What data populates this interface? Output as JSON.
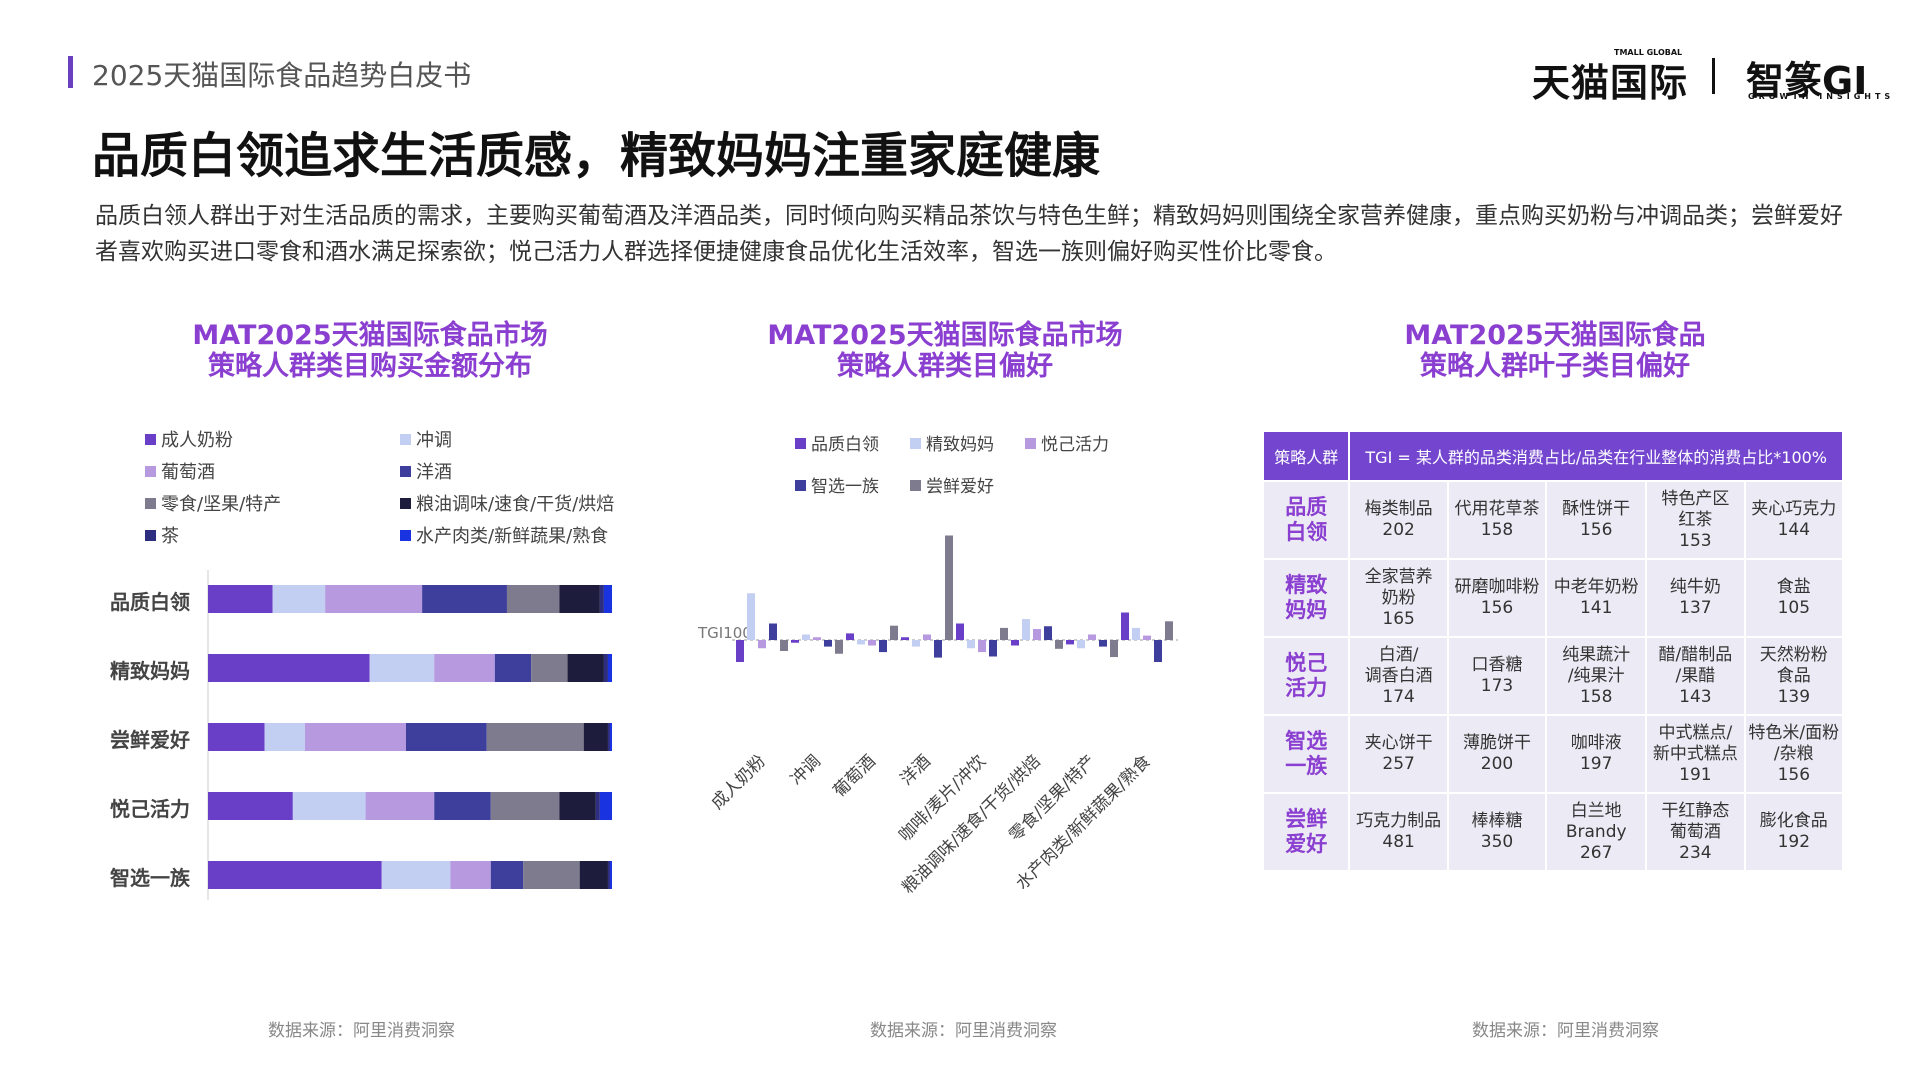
{
  "header": {
    "report_title": "2025天猫国际食品趋势白皮书",
    "brand_tmall": "天猫国际",
    "brand_tmall_small": "TMALL GLOBAL",
    "brand_gi": "智篆GI",
    "brand_gi_small": "GROWTH INSIGHTS"
  },
  "headline": "品质白领追求生活质感，精致妈妈注重家庭健康",
  "intro": "品质白领人群出于对生活品质的需求，主要购买葡萄酒及洋酒品类，同时倾向购买精品茶饮与特色生鲜；精致妈妈则围绕全家营养健康，重点购买奶粉与冲调品类；尝鲜爱好者喜欢购买进口零食和酒水满足探索欲；悦己活力人群选择便捷健康食品优化生活效率，智选一族则偏好购买性价比零食。",
  "colors": {
    "成人奶粉": "#6a3fc8",
    "冲调": "#c3cef3",
    "葡萄酒": "#b699df",
    "洋酒": "#3e3f9c",
    "零食/坚果/特产": "#7d7b8d",
    "粮油调味/速食/干货/烘焙": "#1e1c3c",
    "茶": "#2e2e80",
    "水产肉类/新鲜蔬果/熟食": "#1a33e0",
    "品质白领": "#6a3fc8",
    "精致妈妈": "#c3cef3",
    "悦己活力": "#b699df",
    "智选一族": "#3e3f9c",
    "尝鲜爱好": "#7d7b8d"
  },
  "chart_data": [
    {
      "type": "bar",
      "stacked": true,
      "orientation": "horizontal",
      "title": "MAT2025天猫国际食品市场\n策略人群类目购买金额分布",
      "categories": [
        "品质白领",
        "精致妈妈",
        "尝鲜爱好",
        "悦己活力",
        "智选一族"
      ],
      "legend": [
        "成人奶粉",
        "冲调",
        "葡萄酒",
        "洋酒",
        "零食/坚果/特产",
        "粮油调味/速食/干货/烘焙",
        "茶",
        "水产肉类/新鲜蔬果/熟食"
      ],
      "series": [
        {
          "name": "成人奶粉",
          "values": [
            16,
            40,
            14,
            21,
            43
          ]
        },
        {
          "name": "冲调",
          "values": [
            13,
            16,
            10,
            18,
            17
          ]
        },
        {
          "name": "葡萄酒",
          "values": [
            24,
            15,
            25,
            17,
            10
          ]
        },
        {
          "name": "洋酒",
          "values": [
            21,
            9,
            20,
            14,
            8
          ]
        },
        {
          "name": "零食/坚果/特产",
          "values": [
            13,
            9,
            24,
            17,
            14
          ]
        },
        {
          "name": "粮油调味/速食/干货/烘焙",
          "values": [
            10,
            9,
            6,
            9,
            7
          ]
        },
        {
          "name": "茶",
          "values": [
            1,
            1,
            0.5,
            1,
            0.5
          ]
        },
        {
          "name": "水产肉类/新鲜蔬果/熟食",
          "values": [
            2,
            1,
            0.5,
            3,
            0.5
          ]
        }
      ],
      "xlim": [
        0,
        100
      ]
    },
    {
      "type": "bar",
      "title": "MAT2025天猫国际食品市场\n策略人群类目偏好",
      "baseline_label": "TGI100",
      "baseline": 100,
      "legend": [
        "品质白领",
        "精致妈妈",
        "悦己活力",
        "智选一族",
        "尝鲜爱好"
      ],
      "categories": [
        "成人奶粉",
        "冲调",
        "葡萄酒",
        "洋酒",
        "咖啡/麦片/冲饮",
        "粮油调味/速食/干货/烘焙",
        "零食/坚果/特产",
        "水产肉类/新鲜蔬果/熟食"
      ],
      "series": [
        {
          "name": "品质白领",
          "values": [
            60,
            95,
            112,
            105,
            130,
            90,
            92,
            150
          ]
        },
        {
          "name": "精致妈妈",
          "values": [
            185,
            110,
            92,
            88,
            85,
            138,
            85,
            122
          ]
        },
        {
          "name": "悦己活力",
          "values": [
            85,
            105,
            90,
            110,
            78,
            120,
            110,
            108
          ]
        },
        {
          "name": "智选一族",
          "values": [
            130,
            88,
            78,
            68,
            70,
            125,
            88,
            60
          ]
        },
        {
          "name": "尝鲜爱好",
          "values": [
            80,
            75,
            126,
            290,
            122,
            84,
            69,
            134
          ]
        }
      ]
    },
    {
      "type": "table",
      "title": "MAT2025天猫国际食品\n策略人群叶子类目偏好",
      "header": [
        "策略人群",
        "TGI = 某人群的品类消费占比/品类在行业整体的消费占比*100%"
      ],
      "rows": [
        {
          "segment": "品质\n白领",
          "cells": [
            [
              "梅类制品",
              "202"
            ],
            [
              "代用花草茶",
              "158"
            ],
            [
              "酥性饼干",
              "156"
            ],
            [
              "特色产区\n红茶",
              "153"
            ],
            [
              "夹心巧克力",
              "144"
            ]
          ]
        },
        {
          "segment": "精致\n妈妈",
          "cells": [
            [
              "全家营养\n奶粉",
              "165"
            ],
            [
              "研磨咖啡粉",
              "156"
            ],
            [
              "中老年奶粉",
              "141"
            ],
            [
              "纯牛奶",
              "137"
            ],
            [
              "食盐",
              "105"
            ]
          ]
        },
        {
          "segment": "悦己\n活力",
          "cells": [
            [
              "白酒/\n调香白酒",
              "174"
            ],
            [
              "口香糖",
              "173"
            ],
            [
              "纯果蔬汁\n/纯果汁",
              "158"
            ],
            [
              "醋/醋制品\n/果醋",
              "143"
            ],
            [
              "天然粉粉\n食品",
              "139"
            ]
          ]
        },
        {
          "segment": "智选\n一族",
          "cells": [
            [
              "夹心饼干",
              "257"
            ],
            [
              "薄脆饼干",
              "200"
            ],
            [
              "咖啡液",
              "197"
            ],
            [
              "中式糕点/\n新中式糕点",
              "191"
            ],
            [
              "特色米/面粉\n/杂粮",
              "156"
            ]
          ]
        },
        {
          "segment": "尝鲜\n爱好",
          "cells": [
            [
              "巧克力制品",
              "481"
            ],
            [
              "棒棒糖",
              "350"
            ],
            [
              "白兰地\nBrandy",
              "267"
            ],
            [
              "干红静态\n葡萄酒",
              "234"
            ],
            [
              "膨化食品",
              "192"
            ]
          ]
        }
      ]
    }
  ],
  "sources": [
    "数据来源：阿里消费洞察",
    "数据来源：阿里消费洞察",
    "数据来源：阿里消费洞察"
  ]
}
